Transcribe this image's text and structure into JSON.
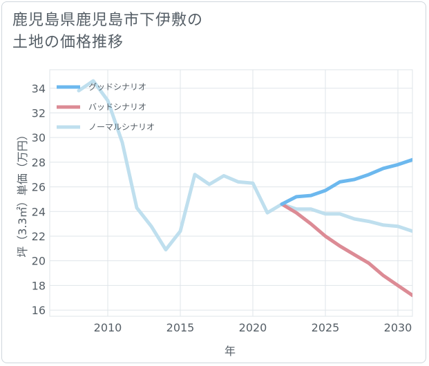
{
  "title_lines": [
    "鹿児島県鹿児島市下伊敷の",
    "土地の価格推移"
  ],
  "chart_data": {
    "type": "line",
    "title": "鹿児島県鹿児島市下伊敷の土地の価格推移",
    "xlabel": "年",
    "ylabel": "坪（3.3㎡）単価（万円）",
    "xlim": [
      2006,
      2031
    ],
    "ylim": [
      15.5,
      35.5
    ],
    "xticks": [
      2010,
      2015,
      2020,
      2025,
      2030
    ],
    "yticks": [
      16,
      18,
      20,
      22,
      24,
      26,
      28,
      30,
      32,
      34
    ],
    "legend_position": "top-left",
    "series": [
      {
        "name": "グッドシナリオ",
        "color": "#6cb8ee",
        "x": [
          2022,
          2023,
          2024,
          2025,
          2026,
          2027,
          2028,
          2029,
          2030,
          2031
        ],
        "y": [
          24.6,
          25.2,
          25.3,
          25.7,
          26.4,
          26.6,
          27.0,
          27.5,
          27.8,
          28.2
        ]
      },
      {
        "name": "バッドシナリオ",
        "color": "#dc8b95",
        "x": [
          2022,
          2023,
          2024,
          2025,
          2026,
          2027,
          2028,
          2029,
          2030,
          2031
        ],
        "y": [
          24.6,
          23.9,
          23.0,
          22.0,
          21.2,
          20.5,
          19.8,
          18.8,
          18.0,
          17.2
        ]
      },
      {
        "name": "ノーマルシナリオ",
        "color": "#bfdfee",
        "x": [
          2008,
          2009,
          2010,
          2011,
          2012,
          2013,
          2014,
          2015,
          2016,
          2017,
          2018,
          2019,
          2020,
          2021,
          2022,
          2023,
          2024,
          2025,
          2026,
          2027,
          2028,
          2029,
          2030,
          2031
        ],
        "y": [
          33.8,
          34.6,
          33.0,
          29.6,
          24.3,
          22.8,
          20.9,
          22.4,
          27.0,
          26.2,
          26.9,
          26.4,
          26.3,
          23.9,
          24.6,
          24.2,
          24.2,
          23.8,
          23.8,
          23.4,
          23.2,
          22.9,
          22.8,
          22.4
        ]
      }
    ]
  }
}
